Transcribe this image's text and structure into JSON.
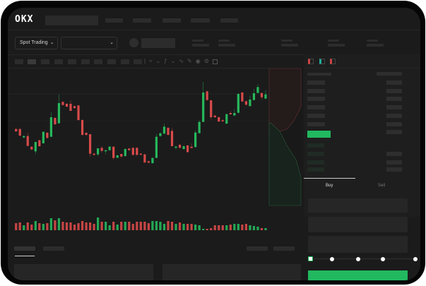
{
  "header": {
    "logo": "OKX",
    "trading_mode": "Spot Trading",
    "chevron_icon": "chevron-down-icon"
  },
  "trade": {
    "tabs": [
      {
        "label": "Buy",
        "active": true
      },
      {
        "label": "Sell",
        "active": false
      }
    ],
    "slider_percent": 0
  },
  "colors": {
    "up": "#26b85c",
    "down": "#d94a4a",
    "background": "#1b1b1b",
    "accent": "#22b860"
  },
  "chart_data": {
    "type": "candlestick",
    "candles": [
      [
        175,
        165
      ],
      [
        175,
        147
      ],
      [
        139,
        145
      ],
      [
        145,
        103,
        160,
        103
      ],
      [
        100,
        88,
        100,
        85
      ],
      [
        80,
        120,
        120,
        68
      ],
      [
        127,
        102
      ],
      [
        114,
        163,
        165,
        114
      ],
      [
        159,
        137
      ],
      [
        142,
        225,
        247,
        142
      ],
      [
        222,
        195
      ],
      [
        199,
        285,
        323,
        199
      ],
      [
        290,
        277
      ],
      [
        282,
        270
      ],
      [
        282,
        252,
        297,
        252
      ],
      [
        272,
        264
      ],
      [
        275,
        213
      ],
      [
        213,
        150
      ],
      [
        159,
        150,
        159,
        145
      ],
      [
        153,
        70,
        153,
        57
      ],
      [
        70,
        65
      ],
      [
        67,
        93,
        93,
        60
      ],
      [
        95,
        82,
        102,
        75
      ],
      [
        80,
        85,
        85,
        67
      ],
      [
        85,
        100
      ],
      [
        100,
        52,
        100,
        44
      ],
      [
        53,
        63
      ],
      [
        69,
        58,
        69,
        52
      ],
      [
        60,
        90
      ],
      [
        92,
        85
      ],
      [
        95,
        65
      ],
      [
        95,
        65
      ],
      [
        70,
        67
      ],
      [
        67,
        33
      ],
      [
        38,
        32
      ],
      [
        30,
        52
      ],
      [
        52,
        142,
        155,
        52
      ],
      [
        145,
        157
      ],
      [
        155,
        185,
        198,
        155
      ],
      [
        180,
        150
      ],
      [
        167,
        102,
        180,
        102
      ],
      [
        95,
        100,
        105,
        88
      ],
      [
        108,
        95
      ],
      [
        90,
        102
      ],
      [
        105,
        77
      ],
      [
        100,
        94,
        114,
        94
      ],
      [
        98,
        160,
        170,
        98
      ],
      [
        157,
        205,
        212,
        157
      ],
      [
        205,
        330,
        375,
        205
      ],
      [
        335,
        298
      ],
      [
        297,
        225,
        297,
        215
      ],
      [
        232,
        225
      ],
      [
        225,
        207
      ],
      [
        212,
        207,
        218,
        207
      ],
      [
        198,
        238
      ],
      [
        243,
        237,
        252,
        237
      ],
      [
        232,
        243,
        260,
        232
      ],
      [
        244,
        324
      ],
      [
        330,
        292
      ],
      [
        293,
        278
      ],
      [
        272,
        300,
        317,
        272
      ],
      [
        298,
        327,
        345,
        298
      ],
      [
        328,
        353,
        365,
        328
      ],
      [
        328,
        310,
        328,
        300
      ],
      [
        304,
        322,
        340,
        304
      ]
    ],
    "volume": [
      10,
      11,
      7,
      11,
      8,
      13,
      10,
      9,
      10,
      17,
      14,
      17,
      12,
      11,
      11,
      8,
      10,
      13,
      11,
      11,
      9,
      18,
      12,
      12,
      7,
      12,
      8,
      12,
      12,
      12,
      9,
      12,
      12,
      12,
      10,
      13,
      13,
      12,
      9,
      13,
      12,
      9,
      11,
      9,
      9,
      9,
      8,
      7,
      2,
      2,
      3,
      7,
      7,
      7,
      7,
      8,
      9,
      9,
      8,
      9,
      7,
      6,
      5,
      3,
      3
    ]
  }
}
